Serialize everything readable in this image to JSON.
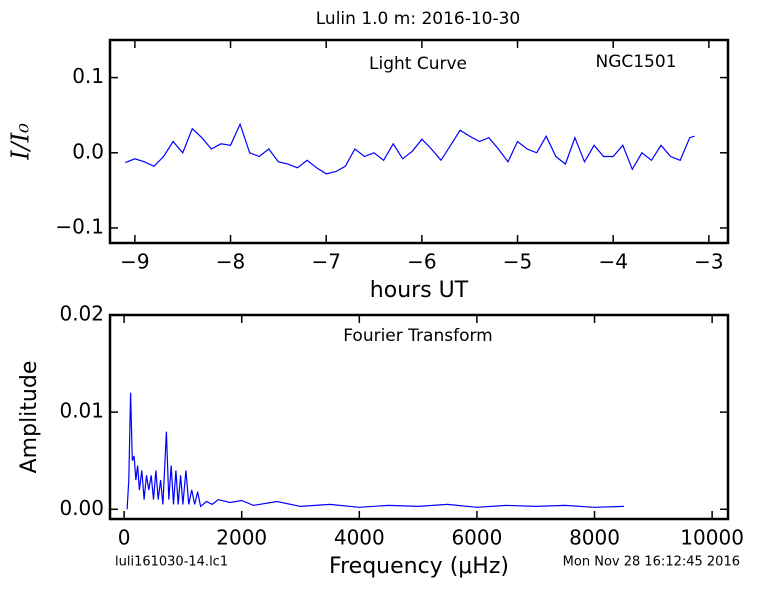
{
  "title": "Lulin 1.0 m:  2016-10-30",
  "footer": {
    "left": "luli161030-14.lc1",
    "right": "Mon Nov 28 16:12:45 2016"
  },
  "chart_data": [
    {
      "type": "line",
      "xlabel": "hours UT",
      "ylabel": "I/I₀",
      "annotations": [
        "Light Curve",
        "NGC1501"
      ],
      "color": "#0000ff",
      "xlim": [
        -9.26,
        -2.8
      ],
      "ylim": [
        -0.12,
        0.15
      ],
      "xticks": [
        {
          "value": -9,
          "label": "−9"
        },
        {
          "value": -8,
          "label": "−8"
        },
        {
          "value": -7,
          "label": "−7"
        },
        {
          "value": -6,
          "label": "−6"
        },
        {
          "value": -5,
          "label": "−5"
        },
        {
          "value": -4,
          "label": "−4"
        },
        {
          "value": -3,
          "label": "−3"
        }
      ],
      "yticks": [
        {
          "value": -0.1,
          "label": "−0.1"
        },
        {
          "value": 0,
          "label": "0.0"
        },
        0.1
      ],
      "x": [
        -9.1,
        -9.0,
        -8.9,
        -8.8,
        -8.7,
        -8.6,
        -8.5,
        -8.4,
        -8.3,
        -8.2,
        -8.1,
        -8.0,
        -7.9,
        -7.8,
        -7.7,
        -7.6,
        -7.5,
        -7.4,
        -7.3,
        -7.2,
        -7.1,
        -7.0,
        -6.9,
        -6.8,
        -6.7,
        -6.6,
        -6.5,
        -6.4,
        -6.3,
        -6.2,
        -6.1,
        -6.0,
        -5.9,
        -5.8,
        -5.7,
        -5.6,
        -5.5,
        -5.4,
        -5.3,
        -5.2,
        -5.1,
        -5.0,
        -4.9,
        -4.8,
        -4.7,
        -4.6,
        -4.5,
        -4.4,
        -4.3,
        -4.2,
        -4.1,
        -4.0,
        -3.9,
        -3.8,
        -3.7,
        -3.6,
        -3.5,
        -3.4,
        -3.3,
        -3.2,
        -3.15
      ],
      "values": [
        -0.013,
        -0.008,
        -0.012,
        -0.018,
        -0.005,
        0.015,
        0.0,
        0.032,
        0.02,
        0.005,
        0.012,
        0.01,
        0.038,
        0.0,
        -0.005,
        0.005,
        -0.012,
        -0.015,
        -0.02,
        -0.01,
        -0.02,
        -0.028,
        -0.025,
        -0.018,
        0.005,
        -0.005,
        0.0,
        -0.01,
        0.012,
        -0.008,
        0.002,
        0.018,
        0.005,
        -0.01,
        0.01,
        0.03,
        0.022,
        0.015,
        0.02,
        0.005,
        -0.012,
        0.015,
        0.005,
        0.0,
        0.022,
        -0.005,
        -0.015,
        0.02,
        -0.012,
        0.01,
        -0.005,
        -0.005,
        0.01,
        -0.022,
        0.0,
        -0.01,
        0.01,
        -0.005,
        -0.01,
        0.02,
        0.022
      ]
    },
    {
      "type": "line",
      "xlabel": "Frequency (μHz)",
      "ylabel": "Amplitude",
      "annotations": [
        "Fourier Transform"
      ],
      "color": "#0000ff",
      "xlim": [
        -240,
        10270
      ],
      "ylim": [
        -0.001,
        0.02
      ],
      "xticks": [
        0,
        2000,
        4000,
        6000,
        8000,
        10000
      ],
      "yticks": [
        {
          "value": 0,
          "label": "0.00"
        },
        0.01,
        0.02
      ],
      "x": [
        50,
        80,
        110,
        140,
        170,
        200,
        230,
        260,
        300,
        340,
        380,
        420,
        460,
        500,
        540,
        580,
        620,
        660,
        720,
        760,
        800,
        840,
        880,
        920,
        960,
        1000,
        1050,
        1100,
        1150,
        1200,
        1250,
        1300,
        1400,
        1500,
        1600,
        1800,
        2000,
        2200,
        2600,
        3000,
        3500,
        4000,
        4500,
        5000,
        5500,
        6000,
        6500,
        7000,
        7500,
        8000,
        8500
      ],
      "values": [
        0,
        0.003,
        0.012,
        0.005,
        0.0055,
        0.003,
        0.0045,
        0.002,
        0.004,
        0.001,
        0.0035,
        0.002,
        0.0035,
        0.001,
        0.004,
        0.001,
        0.003,
        0.0005,
        0.008,
        0.001,
        0.0045,
        0.0005,
        0.004,
        0.0005,
        0.0035,
        0.0005,
        0.004,
        0.0005,
        0.002,
        0.0005,
        0.0018,
        0.0003,
        0.0008,
        0.0005,
        0.001,
        0.0007,
        0.0009,
        0.0004,
        0.0008,
        0.0003,
        0.0005,
        0.0002,
        0.0004,
        0.0003,
        0.0005,
        0.0002,
        0.0004,
        0.0003,
        0.0004,
        0.0002,
        0.0003
      ]
    }
  ]
}
